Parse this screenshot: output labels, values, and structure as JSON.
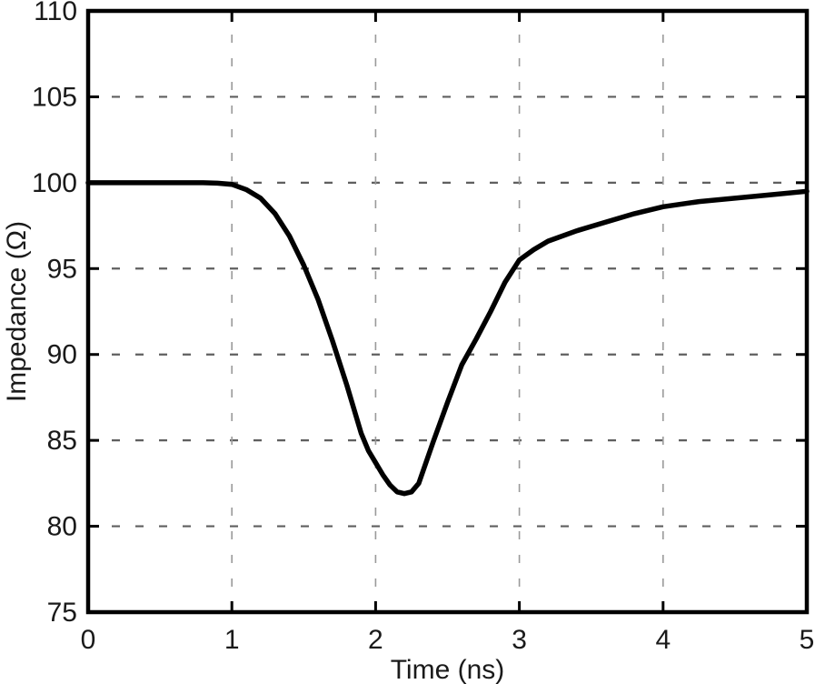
{
  "chart_data": {
    "type": "line",
    "title": "",
    "xlabel": "Time (ns)",
    "ylabel": "Impedance (Ω)",
    "xlim": [
      0,
      5
    ],
    "ylim": [
      75,
      110
    ],
    "x_ticks": [
      0,
      1,
      2,
      3,
      4,
      5
    ],
    "y_ticks": [
      75,
      80,
      85,
      90,
      95,
      100,
      105,
      110
    ],
    "x_gridlines": [
      1,
      2,
      3,
      4
    ],
    "y_gridlines": [
      80,
      85,
      90,
      95,
      100,
      105
    ],
    "grid": "dashed",
    "legend": "none",
    "series": [
      {
        "name": "impedance",
        "color": "#000000",
        "x": [
          0,
          0.3,
          0.6,
          0.8,
          0.9,
          1.0,
          1.1,
          1.2,
          1.3,
          1.4,
          1.5,
          1.6,
          1.7,
          1.8,
          1.9,
          1.95,
          2.0,
          2.05,
          2.1,
          2.15,
          2.2,
          2.25,
          2.3,
          2.4,
          2.5,
          2.6,
          2.7,
          2.8,
          2.9,
          3.0,
          3.1,
          3.2,
          3.4,
          3.6,
          3.8,
          4.0,
          4.25,
          4.5,
          4.75,
          5.0
        ],
        "y": [
          100,
          100,
          100,
          100,
          99.97,
          99.9,
          99.6,
          99.1,
          98.2,
          96.9,
          95.2,
          93.2,
          90.8,
          88.2,
          85.4,
          84.4,
          83.7,
          83.0,
          82.4,
          82.0,
          81.9,
          82.0,
          82.5,
          84.9,
          87.2,
          89.4,
          90.9,
          92.5,
          94.2,
          95.5,
          96.1,
          96.6,
          97.2,
          97.7,
          98.2,
          98.6,
          98.9,
          99.1,
          99.3,
          99.5
        ]
      }
    ],
    "annotations": {
      "baseline_impedance_ohm": 100,
      "minimum_impedance_ohm": 81.9,
      "minimum_time_ns": 2.2
    }
  },
  "styles": {
    "background": "#ffffff",
    "frame_color": "#000000",
    "line_color": "#000000",
    "grid_color_horizontal": "#5f5f5f",
    "grid_color_vertical": "#9a9a9a",
    "tick_color": "#000000",
    "text_color": "#1a1a1a"
  }
}
